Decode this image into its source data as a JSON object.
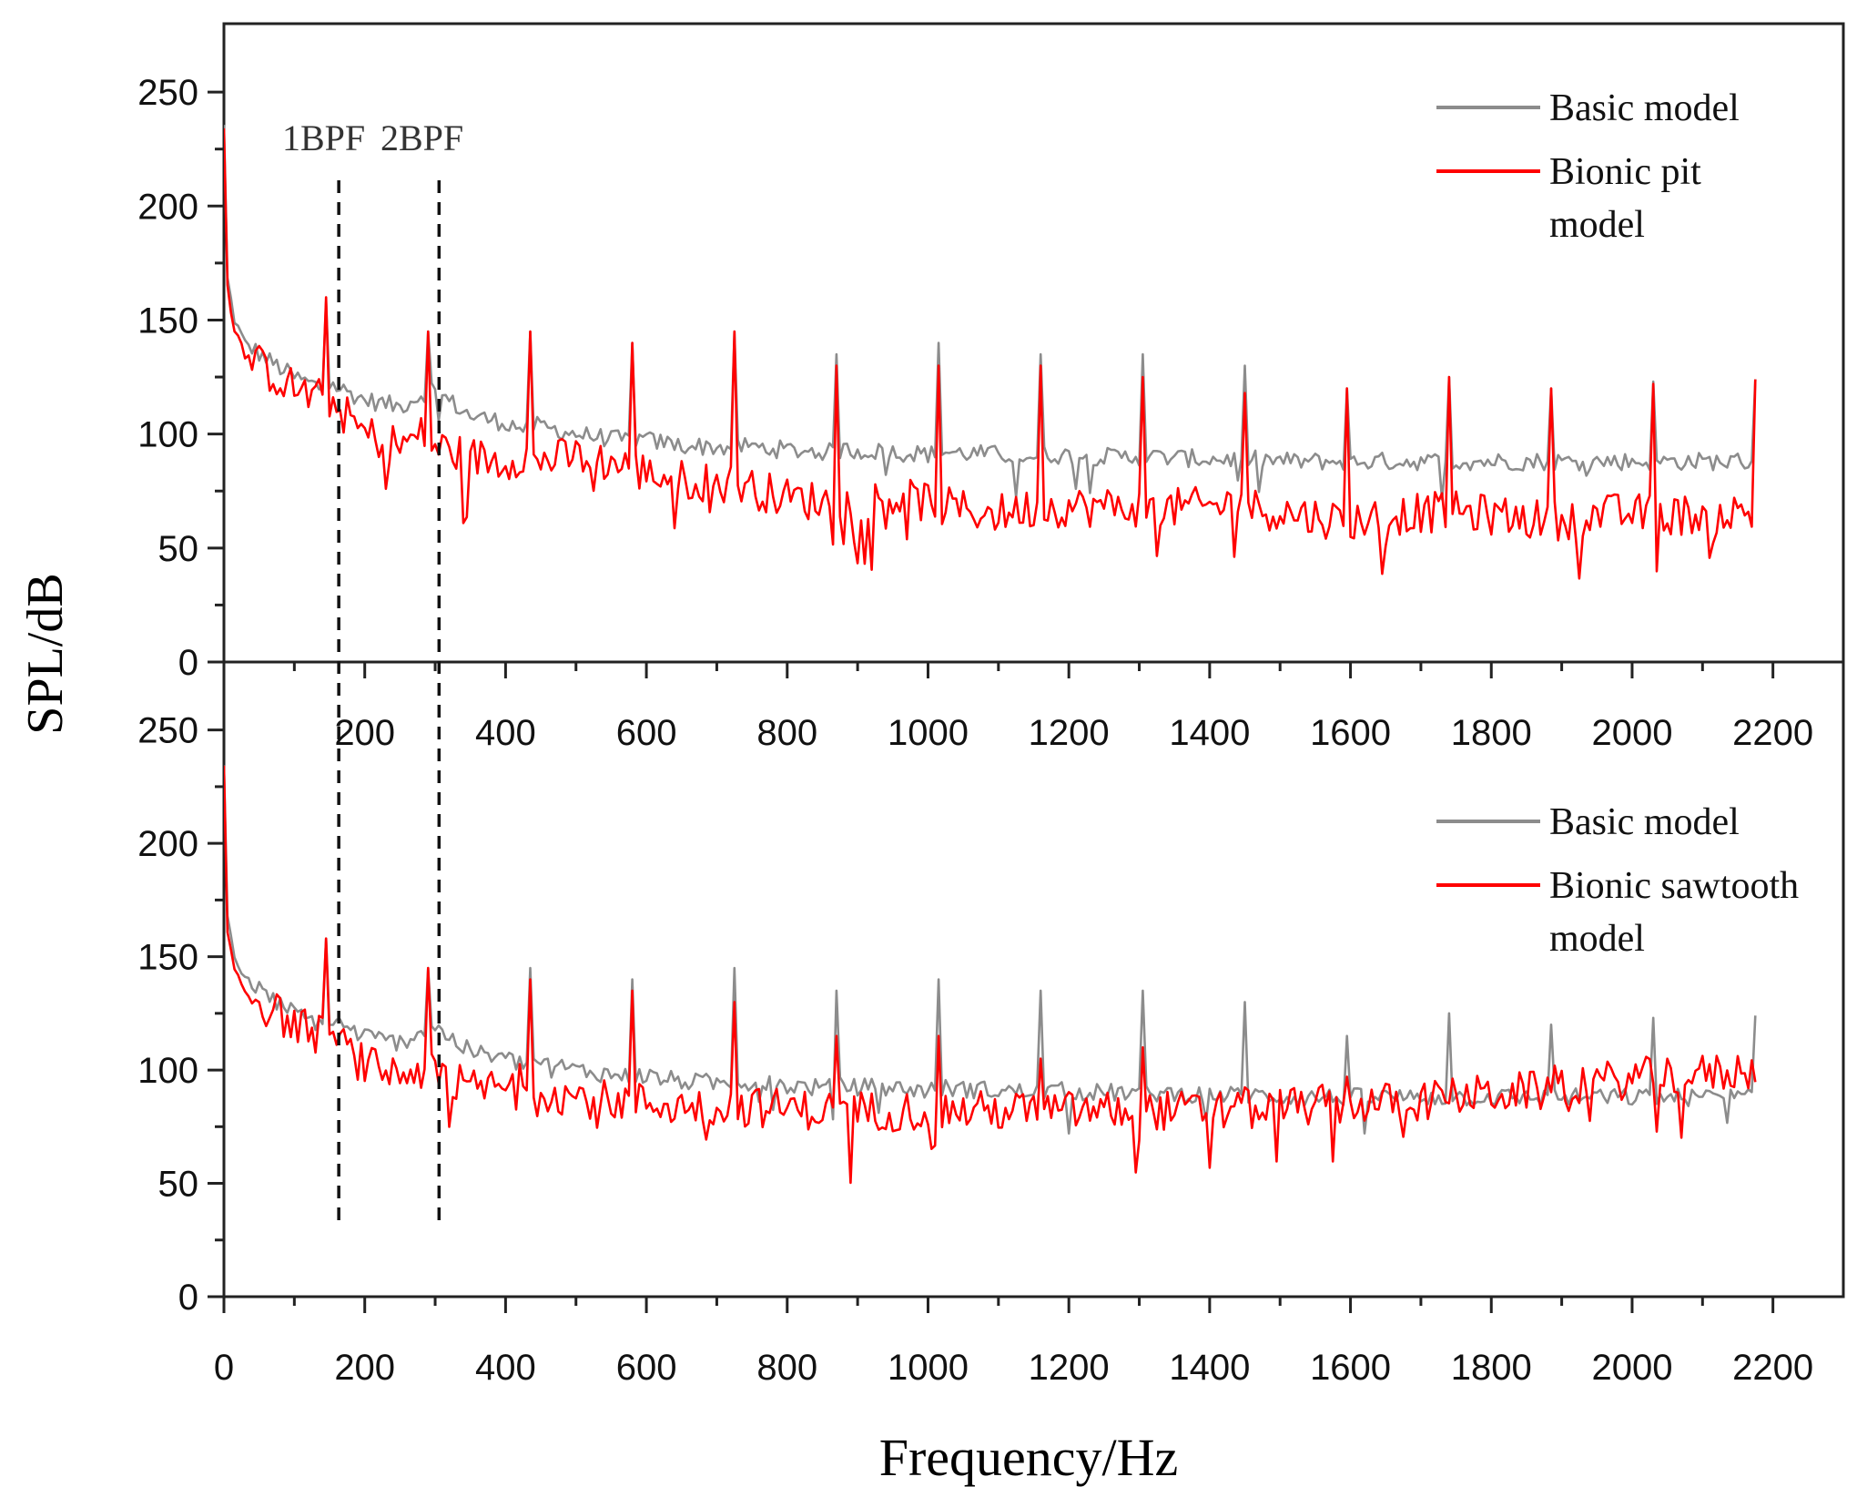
{
  "chart_data": [
    {
      "type": "line",
      "panel": "top",
      "title": "",
      "xlabel": "Frequency/Hz",
      "ylabel": "SPL/dB",
      "xlim": [
        0,
        2300
      ],
      "ylim": [
        0,
        280
      ],
      "xticks": [
        200,
        400,
        600,
        800,
        1000,
        1200,
        1400,
        1600,
        1800,
        2000,
        2200
      ],
      "yticks": [
        0,
        50,
        100,
        150,
        200,
        250
      ],
      "annotations": [
        {
          "text": "1BPF",
          "x": 145
        },
        {
          "text": "2BPF",
          "x": 290
        }
      ],
      "legend": {
        "placement": "top-right",
        "labels": [
          "Basic model",
          "Bionic pit model"
        ]
      },
      "series": [
        {
          "name": "Basic model",
          "color": "#8c8c8c",
          "x": [
            0,
            5,
            15,
            30,
            60,
            100,
            140,
            145,
            150,
            200,
            250,
            285,
            290,
            295,
            350,
            400,
            430,
            435,
            440,
            500,
            575,
            580,
            585,
            650,
            720,
            725,
            730,
            800,
            865,
            870,
            875,
            950,
            1010,
            1015,
            1020,
            1100,
            1155,
            1160,
            1165,
            1250,
            1300,
            1305,
            1310,
            1400,
            1445,
            1450,
            1455,
            1520,
            1590,
            1595,
            1600,
            1680,
            1735,
            1740,
            1745,
            1820,
            1880,
            1885,
            1890,
            1960,
            2025,
            2030,
            2035,
            2100,
            2170,
            2175
          ],
          "y": [
            235,
            168,
            150,
            140,
            133,
            125,
            120,
            158,
            122,
            115,
            112,
            118,
            145,
            120,
            108,
            105,
            102,
            145,
            104,
            100,
            97,
            140,
            98,
            95,
            94,
            145,
            95,
            93,
            92,
            135,
            93,
            92,
            91,
            140,
            92,
            91,
            90,
            135,
            91,
            90,
            90,
            135,
            90,
            89,
            89,
            130,
            89,
            88,
            88,
            120,
            88,
            88,
            88,
            125,
            88,
            88,
            88,
            120,
            88,
            88,
            88,
            123,
            88,
            88,
            88,
            124
          ]
        },
        {
          "name": "Bionic pit model",
          "color": "#ff0000",
          "x": [
            0,
            5,
            15,
            30,
            60,
            100,
            140,
            145,
            150,
            200,
            250,
            285,
            290,
            295,
            350,
            400,
            430,
            435,
            440,
            500,
            575,
            580,
            585,
            650,
            720,
            725,
            730,
            800,
            865,
            870,
            875,
            950,
            1010,
            1015,
            1020,
            1100,
            1155,
            1160,
            1165,
            1250,
            1300,
            1305,
            1310,
            1400,
            1445,
            1450,
            1455,
            1520,
            1590,
            1595,
            1600,
            1680,
            1735,
            1740,
            1745,
            1820,
            1880,
            1885,
            1890,
            1960,
            2025,
            2030,
            2035,
            2100,
            2170,
            2175
          ],
          "y": [
            235,
            165,
            145,
            135,
            128,
            120,
            115,
            160,
            115,
            100,
            95,
            100,
            145,
            95,
            90,
            88,
            92,
            145,
            88,
            90,
            86,
            140,
            84,
            80,
            78,
            145,
            78,
            72,
            70,
            130,
            70,
            72,
            70,
            130,
            68,
            65,
            68,
            130,
            68,
            68,
            68,
            125,
            67,
            68,
            70,
            118,
            68,
            65,
            62,
            120,
            62,
            65,
            66,
            125,
            66,
            64,
            62,
            120,
            62,
            65,
            65,
            122,
            64,
            65,
            65,
            124
          ]
        }
      ]
    },
    {
      "type": "line",
      "panel": "bottom",
      "title": "",
      "xlabel": "Frequency/Hz",
      "ylabel": "SPL/dB",
      "xlim": [
        0,
        2300
      ],
      "ylim": [
        0,
        280
      ],
      "xticks": [
        0,
        200,
        400,
        600,
        800,
        1000,
        1200,
        1400,
        1600,
        1800,
        2000,
        2200
      ],
      "yticks": [
        0,
        50,
        100,
        150,
        200,
        250
      ],
      "legend": {
        "placement": "top-right",
        "labels": [
          "Basic model",
          "Bionic sawtooth model"
        ]
      },
      "series": [
        {
          "name": "Basic model",
          "color": "#8c8c8c",
          "x": [
            0,
            5,
            15,
            30,
            60,
            100,
            140,
            145,
            150,
            200,
            250,
            285,
            290,
            295,
            350,
            400,
            430,
            435,
            440,
            500,
            575,
            580,
            585,
            650,
            720,
            725,
            730,
            800,
            865,
            870,
            875,
            950,
            1010,
            1015,
            1020,
            1100,
            1155,
            1160,
            1165,
            1250,
            1300,
            1305,
            1310,
            1400,
            1445,
            1450,
            1455,
            1520,
            1590,
            1595,
            1600,
            1680,
            1735,
            1740,
            1745,
            1820,
            1880,
            1885,
            1890,
            1960,
            2025,
            2030,
            2035,
            2100,
            2170,
            2175
          ],
          "y": [
            235,
            168,
            150,
            140,
            133,
            125,
            120,
            158,
            122,
            115,
            112,
            118,
            145,
            120,
            108,
            105,
            102,
            145,
            104,
            100,
            97,
            140,
            98,
            95,
            94,
            145,
            95,
            93,
            92,
            135,
            93,
            92,
            91,
            140,
            92,
            91,
            90,
            135,
            91,
            90,
            90,
            135,
            90,
            89,
            89,
            130,
            89,
            88,
            88,
            115,
            88,
            88,
            88,
            125,
            88,
            88,
            88,
            120,
            88,
            88,
            88,
            123,
            88,
            88,
            88,
            124
          ]
        },
        {
          "name": "Bionic sawtooth model",
          "color": "#ff0000",
          "x": [
            0,
            5,
            15,
            30,
            60,
            100,
            140,
            145,
            150,
            200,
            250,
            285,
            290,
            295,
            350,
            400,
            430,
            435,
            440,
            500,
            575,
            580,
            585,
            650,
            720,
            725,
            730,
            800,
            865,
            870,
            875,
            950,
            1010,
            1015,
            1020,
            1100,
            1155,
            1160,
            1165,
            1250,
            1300,
            1305,
            1310,
            1400,
            1445,
            1450,
            1455,
            1520,
            1590,
            1595,
            1600,
            1680,
            1735,
            1740,
            1745,
            1820,
            1880,
            1885,
            1890,
            1960,
            2025,
            2030,
            2035,
            2100,
            2170,
            2175
          ],
          "y": [
            235,
            160,
            145,
            135,
            128,
            120,
            115,
            158,
            115,
            102,
            98,
            100,
            145,
            98,
            92,
            92,
            95,
            140,
            92,
            88,
            86,
            135,
            86,
            84,
            84,
            130,
            84,
            83,
            82,
            115,
            82,
            82,
            82,
            115,
            82,
            82,
            82,
            105,
            82,
            82,
            82,
            110,
            82,
            82,
            82,
            100,
            82,
            84,
            85,
            92,
            85,
            86,
            87,
            92,
            88,
            90,
            91,
            98,
            93,
            95,
            97,
            100,
            98,
            98,
            100,
            98
          ]
        }
      ]
    }
  ]
}
